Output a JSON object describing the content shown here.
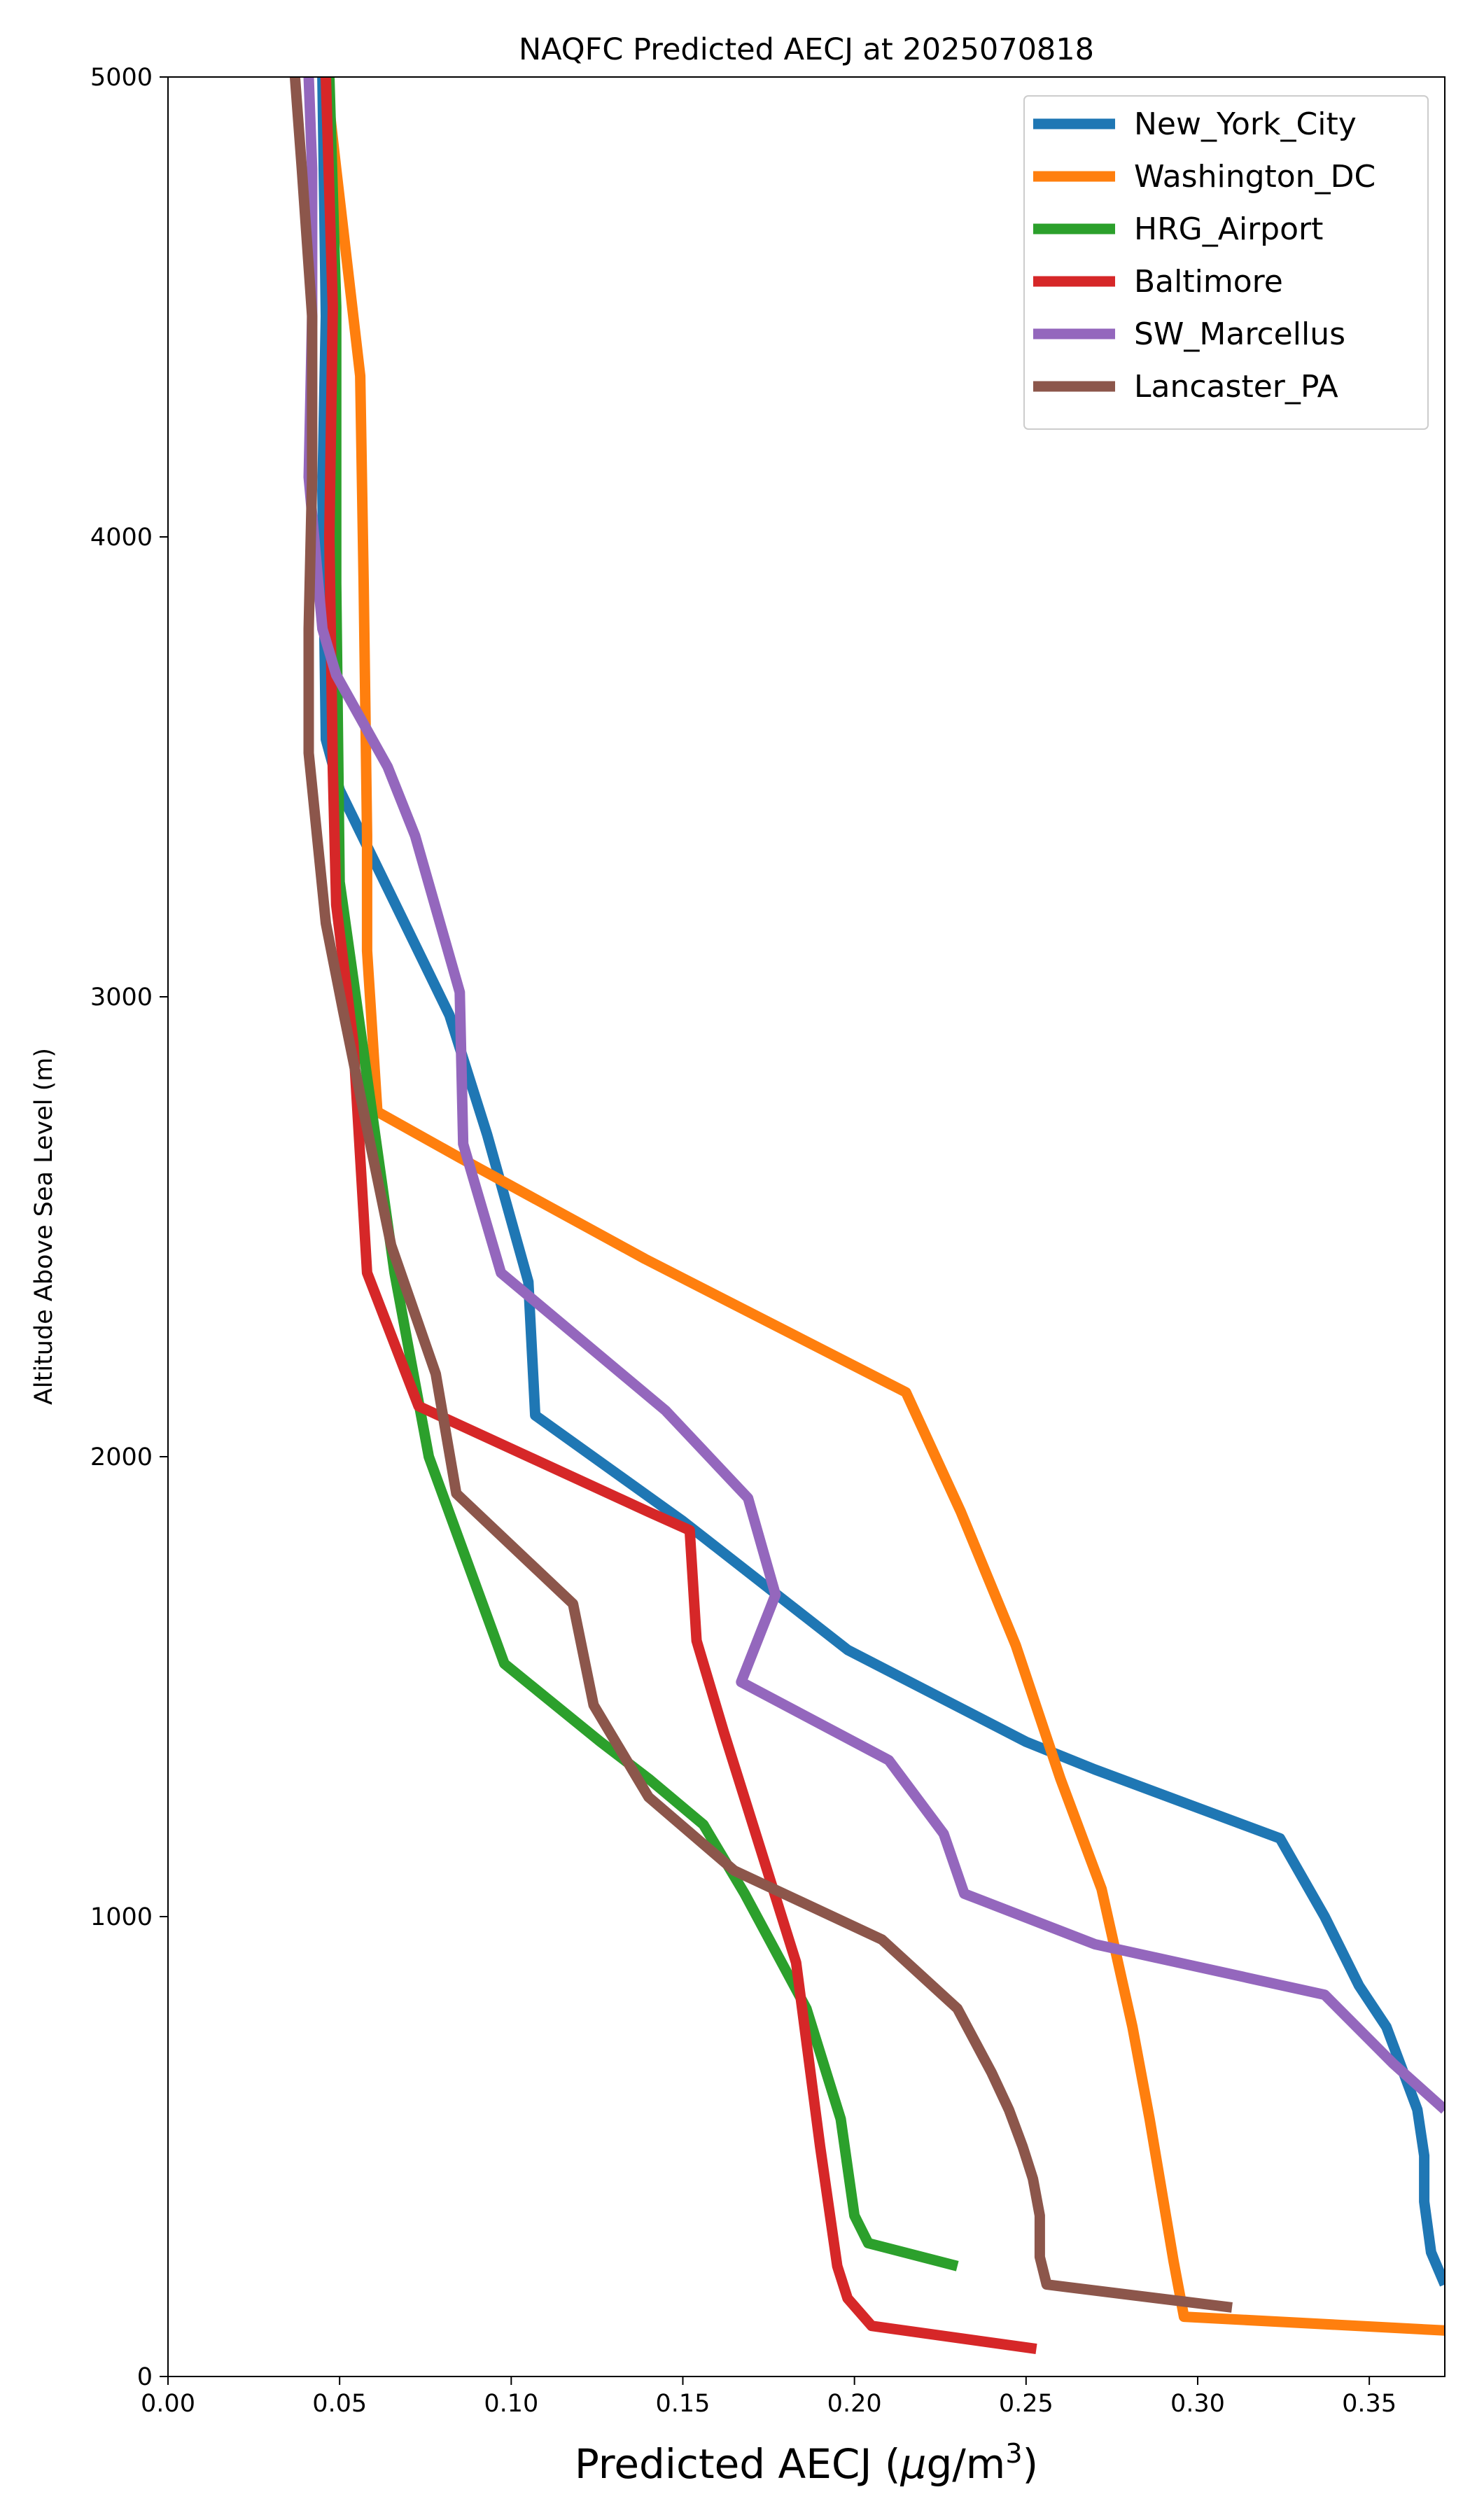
{
  "chart_data": {
    "type": "line",
    "title": "NAQFC Predicted AECJ at 2025070818",
    "xlabel": "Predicted AECJ (μg/m³)",
    "ylabel": "Altitude Above Sea Level (m)",
    "xlim": [
      0.0,
      0.372
    ],
    "ylim": [
      0,
      5000
    ],
    "xticks": [
      "0.00",
      "0.05",
      "0.10",
      "0.15",
      "0.20",
      "0.25",
      "0.30",
      "0.35"
    ],
    "yticks": [
      "0",
      "1000",
      "2000",
      "3000",
      "4000",
      "5000"
    ],
    "grid": false,
    "legend_position": "top-right",
    "series": [
      {
        "name": "New_York_City",
        "color": "#1f77b4",
        "points": [
          [
            0.372,
            200
          ],
          [
            0.368,
            270
          ],
          [
            0.366,
            380
          ],
          [
            0.366,
            480
          ],
          [
            0.364,
            580
          ],
          [
            0.355,
            760
          ],
          [
            0.347,
            850
          ],
          [
            0.337,
            1000
          ],
          [
            0.324,
            1170
          ],
          [
            0.27,
            1320
          ],
          [
            0.25,
            1380
          ],
          [
            0.198,
            1580
          ],
          [
            0.15,
            1860
          ],
          [
            0.107,
            2090
          ],
          [
            0.105,
            2380
          ],
          [
            0.093,
            2700
          ],
          [
            0.082,
            2960
          ],
          [
            0.05,
            3450
          ],
          [
            0.046,
            3560
          ],
          [
            0.045,
            4100
          ],
          [
            0.046,
            4480
          ],
          [
            0.045,
            5000
          ]
        ]
      },
      {
        "name": "Washington_DC",
        "color": "#ff7f0e",
        "points": [
          [
            0.372,
            100
          ],
          [
            0.296,
            130
          ],
          [
            0.293,
            250
          ],
          [
            0.286,
            560
          ],
          [
            0.281,
            760
          ],
          [
            0.272,
            1060
          ],
          [
            0.26,
            1300
          ],
          [
            0.247,
            1590
          ],
          [
            0.231,
            1880
          ],
          [
            0.215,
            2140
          ],
          [
            0.139,
            2430
          ],
          [
            0.085,
            2650
          ],
          [
            0.061,
            2750
          ],
          [
            0.058,
            3100
          ],
          [
            0.058,
            3350
          ],
          [
            0.057,
            3900
          ],
          [
            0.056,
            4350
          ],
          [
            0.049,
            4800
          ],
          [
            0.046,
            5000
          ]
        ]
      },
      {
        "name": "HRG_Airport",
        "color": "#2ca02c",
        "points": [
          [
            0.23,
            240
          ],
          [
            0.204,
            290
          ],
          [
            0.2,
            350
          ],
          [
            0.196,
            560
          ],
          [
            0.186,
            800
          ],
          [
            0.168,
            1050
          ],
          [
            0.156,
            1200
          ],
          [
            0.14,
            1300
          ],
          [
            0.126,
            1380
          ],
          [
            0.098,
            1550
          ],
          [
            0.076,
            2000
          ],
          [
            0.066,
            2400
          ],
          [
            0.05,
            3250
          ],
          [
            0.049,
            3900
          ],
          [
            0.049,
            4500
          ],
          [
            0.047,
            5000
          ]
        ]
      },
      {
        "name": "Baltimore",
        "color": "#d62728",
        "points": [
          [
            0.253,
            60
          ],
          [
            0.205,
            110
          ],
          [
            0.198,
            170
          ],
          [
            0.195,
            240
          ],
          [
            0.19,
            500
          ],
          [
            0.183,
            900
          ],
          [
            0.162,
            1400
          ],
          [
            0.154,
            1600
          ],
          [
            0.152,
            1840
          ],
          [
            0.14,
            1880
          ],
          [
            0.073,
            2110
          ],
          [
            0.058,
            2400
          ],
          [
            0.054,
            2900
          ],
          [
            0.049,
            3200
          ],
          [
            0.048,
            3500
          ],
          [
            0.047,
            4000
          ],
          [
            0.048,
            4500
          ],
          [
            0.046,
            5000
          ]
        ]
      },
      {
        "name": "SW_Marcellus",
        "color": "#9467bd",
        "points": [
          [
            0.372,
            580
          ],
          [
            0.357,
            680
          ],
          [
            0.337,
            830
          ],
          [
            0.27,
            940
          ],
          [
            0.232,
            1050
          ],
          [
            0.226,
            1180
          ],
          [
            0.21,
            1340
          ],
          [
            0.167,
            1510
          ],
          [
            0.177,
            1700
          ],
          [
            0.169,
            1910
          ],
          [
            0.145,
            2100
          ],
          [
            0.097,
            2400
          ],
          [
            0.086,
            2680
          ],
          [
            0.085,
            3010
          ],
          [
            0.072,
            3350
          ],
          [
            0.064,
            3500
          ],
          [
            0.049,
            3700
          ],
          [
            0.045,
            3800
          ],
          [
            0.041,
            4130
          ],
          [
            0.042,
            4480
          ],
          [
            0.042,
            4800
          ],
          [
            0.041,
            5000
          ]
        ]
      },
      {
        "name": "Lancaster_PA",
        "color": "#8c564b",
        "points": [
          [
            0.31,
            150
          ],
          [
            0.256,
            200
          ],
          [
            0.254,
            260
          ],
          [
            0.254,
            350
          ],
          [
            0.252,
            430
          ],
          [
            0.249,
            500
          ],
          [
            0.245,
            580
          ],
          [
            0.24,
            660
          ],
          [
            0.23,
            800
          ],
          [
            0.208,
            950
          ],
          [
            0.165,
            1100
          ],
          [
            0.14,
            1260
          ],
          [
            0.124,
            1460
          ],
          [
            0.118,
            1680
          ],
          [
            0.084,
            1920
          ],
          [
            0.078,
            2180
          ],
          [
            0.065,
            2460
          ],
          [
            0.057,
            2750
          ],
          [
            0.051,
            2970
          ],
          [
            0.046,
            3160
          ],
          [
            0.041,
            3530
          ],
          [
            0.041,
            3800
          ],
          [
            0.042,
            4130
          ],
          [
            0.042,
            4480
          ],
          [
            0.039,
            4800
          ],
          [
            0.037,
            5000
          ]
        ]
      }
    ]
  }
}
